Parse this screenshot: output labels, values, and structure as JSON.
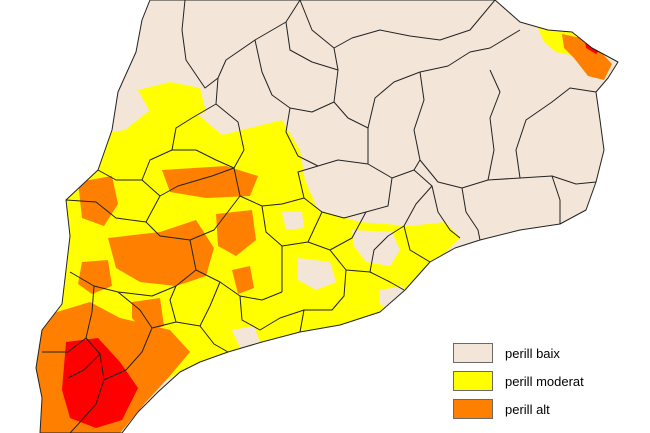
{
  "legend": {
    "items": [
      {
        "label": "perill baix",
        "color": "#f3e6d8"
      },
      {
        "label": "perill moderat",
        "color": "#ffff00"
      },
      {
        "label": "perill alt",
        "color": "#ff8000"
      }
    ]
  },
  "colors": {
    "background": "#ffffff",
    "land_low": "#f3e6d8",
    "moderate": "#ffff00",
    "high": "#ff8000",
    "very_high": "#ff0000",
    "boundary": "#222222"
  }
}
